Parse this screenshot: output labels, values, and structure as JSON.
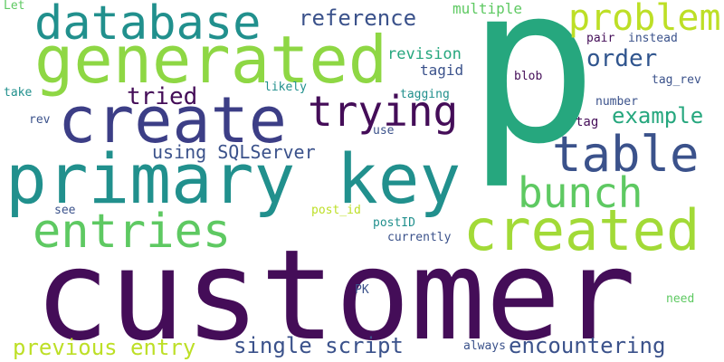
{
  "colors": {
    "background": "#ffffff",
    "dark_purple": "#440d58",
    "indigo": "#3c3e86",
    "blue": "#30558e",
    "slate_blue": "#3b528b",
    "teal": "#21908d",
    "green_teal": "#26a77e",
    "green": "#5ec962",
    "light_green": "#8ed744",
    "lime": "#bddf26"
  },
  "words": {
    "p": "p",
    "customer": "customer",
    "primary_key": "primary key",
    "generated": "generated",
    "create": "create",
    "created": "created",
    "table": "table",
    "database": "database",
    "trying": "trying",
    "entries": "entries",
    "bunch": "bunch",
    "problem": "problem",
    "reference": "reference",
    "order": "order",
    "example": "example",
    "tried": "tried",
    "using_sqlserver": "using SQLServer",
    "previous_entry": "previous entry",
    "single_script": "single script",
    "encountering": "encountering",
    "multiple": "multiple",
    "revision": "revision",
    "tagid": "tagid",
    "pair": "pair",
    "instead": "instead",
    "blob": "blob",
    "tag_rev": "tag_rev",
    "tagging": "tagging",
    "likely": "likely",
    "take": "take",
    "number": "number",
    "tag": "tag",
    "rev": "rev",
    "use": "use",
    "let": "Let",
    "see": "see",
    "post_id": "post_id",
    "postid": "postID",
    "currently": "currently",
    "pk": "PK",
    "need": "need",
    "always": "always"
  }
}
